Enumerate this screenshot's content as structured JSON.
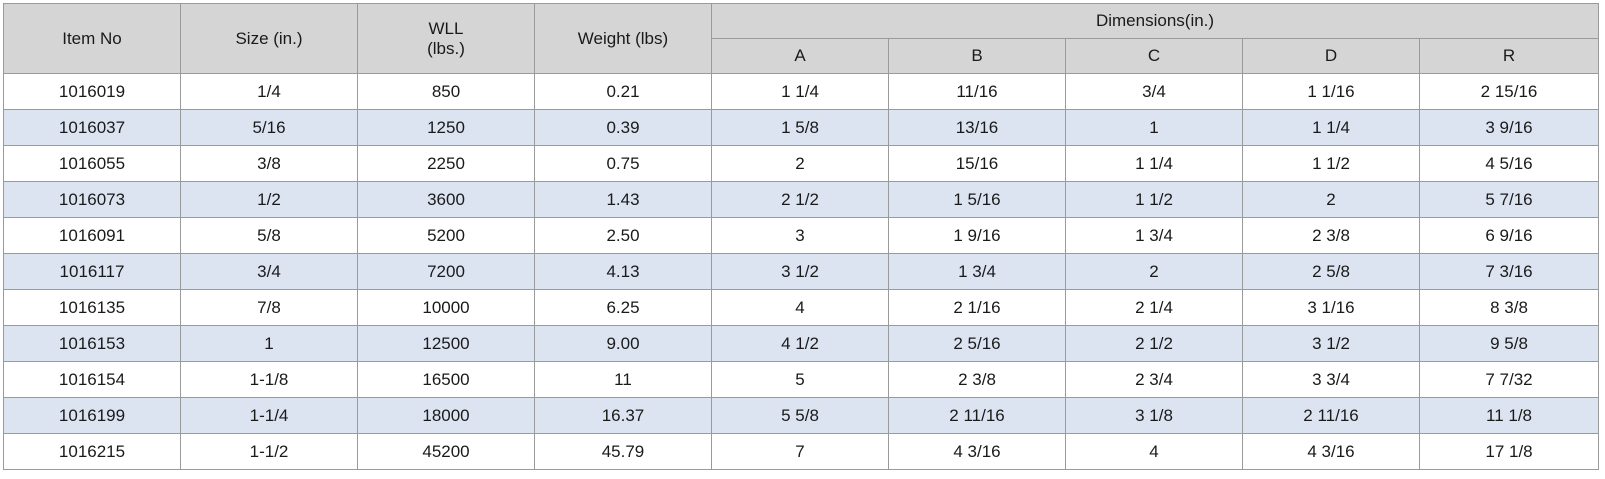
{
  "table": {
    "headers": {
      "item_no": "Item No",
      "size": "Size (in.)",
      "wll_line1": "WLL",
      "wll_line2": "(lbs.)",
      "weight": "Weight (lbs)",
      "dimensions": "Dimensions(in.)",
      "dim_cols": [
        "A",
        "B",
        "C",
        "D",
        "R"
      ]
    },
    "rows": [
      [
        "1016019",
        "1/4",
        "850",
        "0.21",
        "1 1/4",
        "11/16",
        "3/4",
        "1 1/16",
        "2 15/16"
      ],
      [
        "1016037",
        "5/16",
        "1250",
        "0.39",
        "1 5/8",
        "13/16",
        "1",
        "1 1/4",
        "3 9/16"
      ],
      [
        "1016055",
        "3/8",
        "2250",
        "0.75",
        "2",
        "15/16",
        "1 1/4",
        "1 1/2",
        "4 5/16"
      ],
      [
        "1016073",
        "1/2",
        "3600",
        "1.43",
        "2 1/2",
        "1 5/16",
        "1 1/2",
        "2",
        "5 7/16"
      ],
      [
        "1016091",
        "5/8",
        "5200",
        "2.50",
        "3",
        "1 9/16",
        "1 3/4",
        "2 3/8",
        "6 9/16"
      ],
      [
        "1016117",
        "3/4",
        "7200",
        "4.13",
        "3 1/2",
        "1 3/4",
        "2",
        "2 5/8",
        "7 3/16"
      ],
      [
        "1016135",
        "7/8",
        "10000",
        "6.25",
        "4",
        "2 1/16",
        "2 1/4",
        "3 1/16",
        "8 3/8"
      ],
      [
        "1016153",
        "1",
        "12500",
        "9.00",
        "4 1/2",
        "2 5/16",
        "2 1/2",
        "3 1/2",
        "9 5/8"
      ],
      [
        "1016154",
        "1-1/8",
        "16500",
        "11",
        "5",
        "2 3/8",
        "2 3/4",
        "3 3/4",
        "7 7/32"
      ],
      [
        "1016199",
        "1-1/4",
        "18000",
        "16.37",
        "5 5/8",
        "2 11/16",
        "3 1/8",
        "2 11/16",
        "11 1/8"
      ],
      [
        "1016215",
        "1-1/2",
        "45200",
        "45.79",
        "7",
        "4 3/16",
        "4",
        "4 3/16",
        "17 1/8"
      ]
    ]
  },
  "colors": {
    "header_bg": "#d5d5d5",
    "alt_row_bg": "#dce4f2",
    "row_bg": "#ffffff",
    "border": "#9a9a9a"
  }
}
